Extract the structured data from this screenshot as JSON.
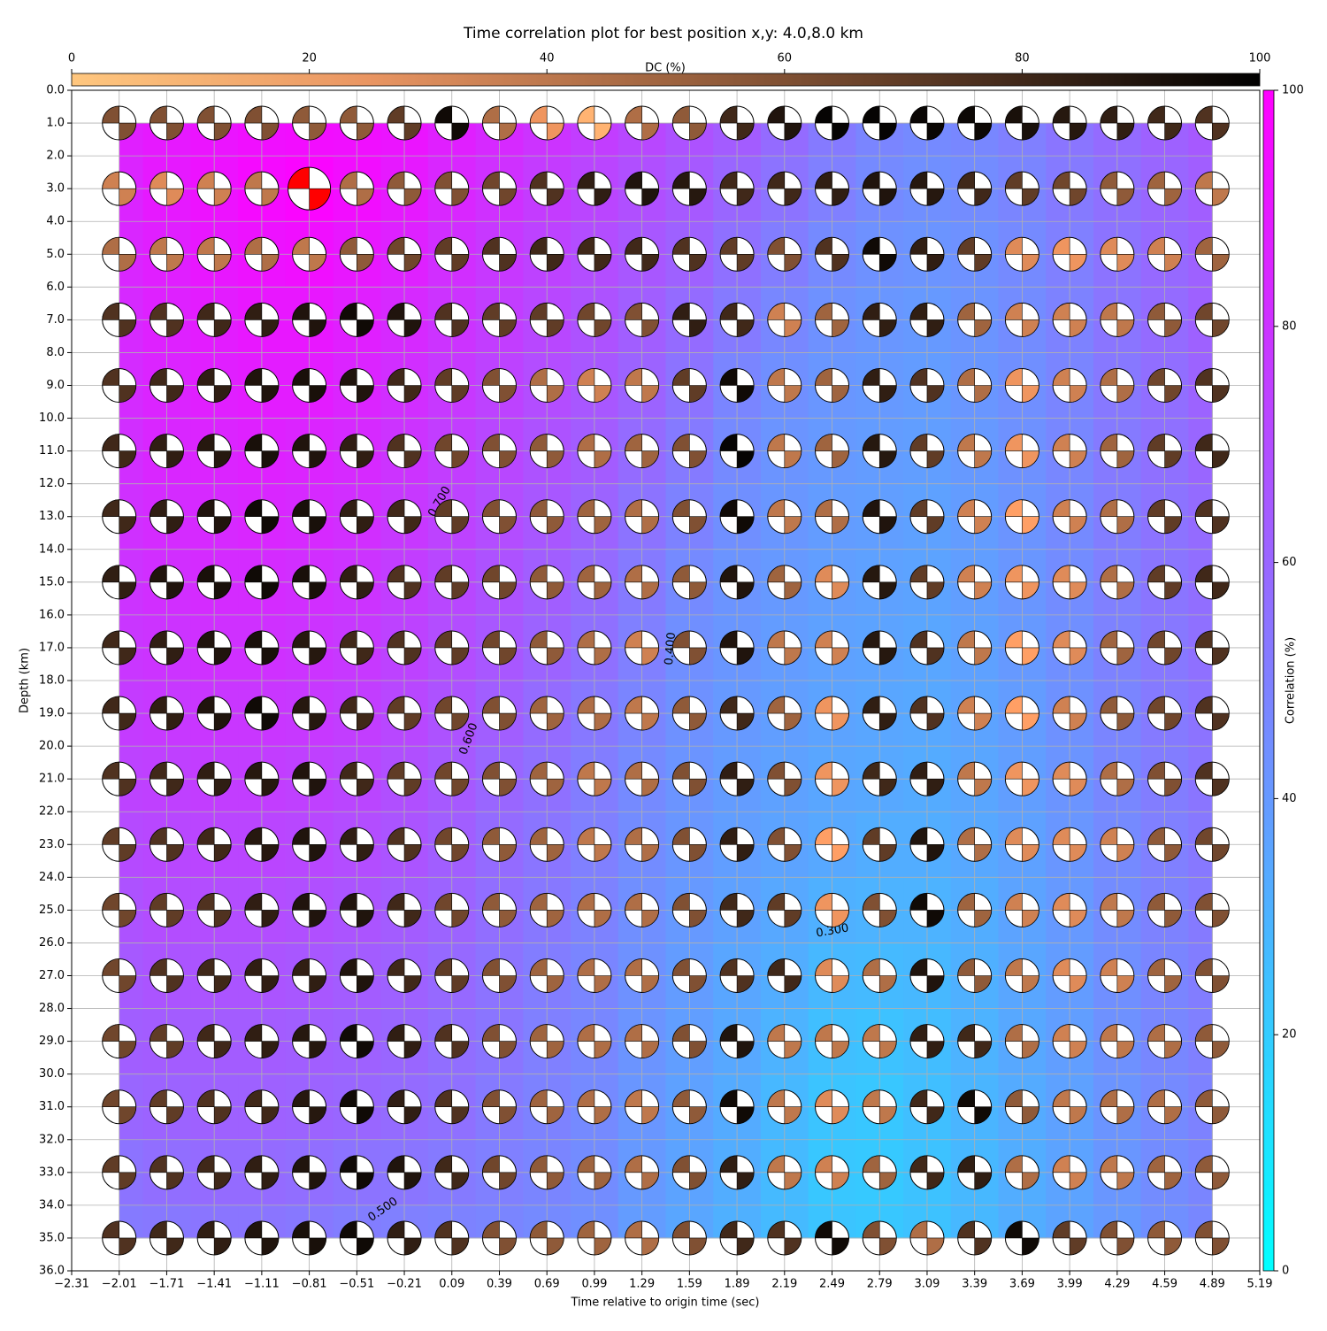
{
  "chart_data": {
    "type": "heatmap",
    "title": "Time correlation plot for best position x,y: 4.0,8.0 km",
    "x_label": "Time relative to origin time (sec)",
    "y_label": "Depth (km)",
    "cmap": "cool",
    "grid": true,
    "xlim": [
      -2.31,
      5.19
    ],
    "ylim": [
      36,
      0
    ],
    "xticks": [
      {
        "value": -2.31,
        "label": "−2.31"
      },
      {
        "value": -2.01,
        "label": "−2.01"
      },
      {
        "value": -1.71,
        "label": "−1.71"
      },
      {
        "value": -1.41,
        "label": "−1.41"
      },
      {
        "value": -1.11,
        "label": "−1.11"
      },
      {
        "value": -0.81,
        "label": "−0.81"
      },
      {
        "value": -0.51,
        "label": "−0.51"
      },
      {
        "value": -0.21,
        "label": "−0.21"
      },
      0.09,
      0.39,
      0.69,
      0.99,
      1.29,
      1.59,
      1.89,
      2.19,
      2.49,
      2.79,
      3.09,
      3.39,
      3.69,
      3.99,
      4.29,
      4.59,
      4.89,
      5.19
    ],
    "yticks": [
      {
        "value": 0,
        "label": "0.0"
      },
      {
        "value": 1,
        "label": "1.0"
      },
      {
        "value": 2,
        "label": "2.0"
      },
      {
        "value": 3,
        "label": "3.0"
      },
      {
        "value": 4,
        "label": "4.0"
      },
      {
        "value": 5,
        "label": "5.0"
      },
      {
        "value": 6,
        "label": "6.0"
      },
      {
        "value": 7,
        "label": "7.0"
      },
      {
        "value": 8,
        "label": "8.0"
      },
      {
        "value": 9,
        "label": "9.0"
      },
      {
        "value": 10,
        "label": "10.0"
      },
      {
        "value": 11,
        "label": "11.0"
      },
      {
        "value": 12,
        "label": "12.0"
      },
      {
        "value": 13,
        "label": "13.0"
      },
      {
        "value": 14,
        "label": "14.0"
      },
      {
        "value": 15,
        "label": "15.0"
      },
      {
        "value": 16,
        "label": "16.0"
      },
      {
        "value": 17,
        "label": "17.0"
      },
      {
        "value": 18,
        "label": "18.0"
      },
      {
        "value": 19,
        "label": "19.0"
      },
      {
        "value": 20,
        "label": "20.0"
      },
      {
        "value": 21,
        "label": "21.0"
      },
      {
        "value": 22,
        "label": "22.0"
      },
      {
        "value": 23,
        "label": "23.0"
      },
      {
        "value": 24,
        "label": "24.0"
      },
      {
        "value": 25,
        "label": "25.0"
      },
      {
        "value": 26,
        "label": "26.0"
      },
      {
        "value": 27,
        "label": "27.0"
      },
      {
        "value": 28,
        "label": "28.0"
      },
      {
        "value": 29,
        "label": "29.0"
      },
      {
        "value": 30,
        "label": "30.0"
      },
      {
        "value": 31,
        "label": "31.0"
      },
      {
        "value": 32,
        "label": "32.0"
      },
      {
        "value": 33,
        "label": "33.0"
      },
      {
        "value": 34,
        "label": "34.0"
      },
      {
        "value": 35,
        "label": "35.0"
      },
      {
        "value": 36,
        "label": "36.0"
      }
    ],
    "times": [
      -2.01,
      -1.71,
      -1.41,
      -1.11,
      -0.81,
      -0.51,
      -0.21,
      0.09,
      0.39,
      0.69,
      0.99,
      1.29,
      1.59,
      1.89,
      2.19,
      2.49,
      2.79,
      3.09,
      3.39,
      3.69,
      3.99,
      4.29,
      4.59,
      4.89
    ],
    "depths": [
      1,
      3,
      5,
      7,
      9,
      11,
      13,
      15,
      17,
      19,
      21,
      23,
      25,
      27,
      29,
      31,
      33,
      35
    ],
    "values": [
      [
        88,
        90,
        92,
        94,
        95,
        94,
        92,
        88,
        84,
        80,
        76,
        72,
        68,
        64,
        58,
        52,
        48,
        46,
        47,
        50,
        54,
        58,
        62,
        65
      ],
      [
        86,
        90,
        93,
        96,
        98,
        95,
        90,
        85,
        81,
        77,
        73,
        69,
        65,
        60,
        55,
        50,
        46,
        44,
        45,
        48,
        52,
        56,
        60,
        63
      ],
      [
        85,
        88,
        91,
        93,
        94,
        91,
        87,
        82,
        78,
        74,
        70,
        66,
        62,
        56,
        51,
        46,
        43,
        42,
        43,
        46,
        50,
        55,
        59,
        62
      ],
      [
        84,
        87,
        89,
        91,
        91,
        88,
        84,
        80,
        76,
        72,
        68,
        63,
        58,
        52,
        47,
        43,
        41,
        40,
        42,
        45,
        49,
        54,
        58,
        62
      ],
      [
        83,
        86,
        88,
        89,
        89,
        86,
        82,
        78,
        74,
        70,
        66,
        61,
        55,
        48,
        44,
        41,
        40,
        39,
        41,
        44,
        48,
        53,
        57,
        61
      ],
      [
        82,
        85,
        86,
        87,
        86,
        84,
        80,
        76,
        72,
        68,
        64,
        58,
        52,
        46,
        42,
        40,
        39,
        38,
        40,
        43,
        47,
        52,
        56,
        60
      ],
      [
        81,
        83,
        84,
        85,
        84,
        82,
        78,
        74,
        70,
        66,
        61,
        55,
        49,
        44,
        41,
        39,
        38,
        37,
        39,
        42,
        46,
        51,
        55,
        58
      ],
      [
        80,
        82,
        83,
        83,
        82,
        80,
        76,
        72,
        68,
        63,
        58,
        52,
        46,
        42,
        40,
        38,
        37,
        36,
        38,
        41,
        45,
        50,
        54,
        57
      ],
      [
        79,
        80,
        81,
        81,
        80,
        78,
        74,
        70,
        66,
        61,
        56,
        50,
        44,
        41,
        39,
        37,
        36,
        35,
        37,
        40,
        44,
        49,
        53,
        56
      ],
      [
        77,
        78,
        79,
        79,
        78,
        76,
        72,
        68,
        63,
        58,
        53,
        48,
        43,
        40,
        38,
        36,
        35,
        34,
        36,
        39,
        43,
        48,
        52,
        55
      ],
      [
        74,
        75,
        76,
        76,
        75,
        73,
        69,
        65,
        60,
        56,
        51,
        46,
        42,
        39,
        37,
        35,
        34,
        33,
        35,
        38,
        42,
        47,
        51,
        54
      ],
      [
        71,
        72,
        73,
        73,
        72,
        70,
        67,
        63,
        58,
        54,
        50,
        45,
        41,
        38,
        36,
        34,
        32,
        32,
        34,
        37,
        41,
        46,
        50,
        53
      ],
      [
        68,
        70,
        70,
        70,
        69,
        67,
        64,
        61,
        57,
        53,
        49,
        44,
        40,
        37,
        34,
        31,
        30,
        30,
        32,
        36,
        40,
        45,
        49,
        52
      ],
      [
        65,
        67,
        67,
        67,
        66,
        64,
        62,
        59,
        55,
        51,
        48,
        43,
        39,
        35,
        32,
        28,
        27,
        28,
        31,
        35,
        39,
        44,
        48,
        51
      ],
      [
        63,
        64,
        64,
        64,
        63,
        62,
        60,
        57,
        54,
        50,
        47,
        42,
        38,
        34,
        30,
        25,
        24,
        26,
        30,
        34,
        38,
        43,
        47,
        50
      ],
      [
        60,
        61,
        62,
        62,
        61,
        60,
        58,
        56,
        52,
        49,
        46,
        41,
        37,
        33,
        28,
        23,
        22,
        25,
        29,
        33,
        37,
        42,
        46,
        49
      ],
      [
        55,
        57,
        58,
        58,
        57,
        55,
        54,
        52,
        50,
        48,
        45,
        40,
        36,
        32,
        27,
        22,
        21,
        24,
        28,
        32,
        36,
        41,
        45,
        48
      ],
      [
        52,
        53,
        54,
        54,
        53,
        51,
        50,
        49,
        48,
        46,
        44,
        39,
        35,
        31,
        27,
        23,
        22,
        24,
        28,
        32,
        36,
        40,
        44,
        47
      ]
    ],
    "dc_cmap": "copper_r",
    "dc": [
      [
        60,
        60,
        60,
        60,
        55,
        55,
        70,
        95,
        45,
        25,
        10,
        45,
        55,
        80,
        90,
        98,
        98,
        97,
        96,
        92,
        88,
        85,
        80,
        75
      ],
      [
        35,
        30,
        35,
        40,
        50,
        45,
        55,
        60,
        65,
        75,
        85,
        90,
        88,
        80,
        80,
        85,
        90,
        88,
        80,
        70,
        65,
        55,
        50,
        40
      ],
      [
        45,
        40,
        40,
        45,
        40,
        55,
        65,
        70,
        75,
        80,
        80,
        80,
        75,
        70,
        60,
        75,
        95,
        85,
        70,
        30,
        25,
        30,
        35,
        50
      ],
      [
        75,
        75,
        80,
        85,
        90,
        95,
        90,
        75,
        70,
        70,
        65,
        60,
        85,
        80,
        35,
        50,
        85,
        85,
        50,
        35,
        35,
        40,
        55,
        65
      ],
      [
        75,
        80,
        85,
        90,
        92,
        90,
        80,
        70,
        60,
        45,
        35,
        40,
        70,
        95,
        40,
        50,
        85,
        75,
        45,
        25,
        35,
        45,
        65,
        75
      ],
      [
        80,
        85,
        88,
        92,
        90,
        85,
        75,
        65,
        60,
        55,
        45,
        50,
        60,
        98,
        40,
        50,
        88,
        70,
        40,
        25,
        35,
        50,
        70,
        80
      ],
      [
        80,
        85,
        90,
        95,
        92,
        85,
        80,
        70,
        60,
        55,
        50,
        45,
        60,
        95,
        40,
        45,
        90,
        70,
        35,
        20,
        35,
        45,
        70,
        75
      ],
      [
        85,
        90,
        92,
        95,
        92,
        85,
        75,
        70,
        65,
        55,
        50,
        45,
        55,
        90,
        50,
        30,
        88,
        70,
        35,
        25,
        30,
        45,
        70,
        80
      ],
      [
        80,
        85,
        90,
        92,
        88,
        80,
        75,
        70,
        65,
        55,
        45,
        35,
        60,
        90,
        40,
        35,
        88,
        75,
        40,
        20,
        30,
        50,
        65,
        75
      ],
      [
        80,
        85,
        90,
        95,
        88,
        80,
        70,
        65,
        60,
        50,
        45,
        40,
        55,
        80,
        50,
        25,
        85,
        75,
        35,
        20,
        35,
        55,
        65,
        75
      ],
      [
        75,
        80,
        85,
        88,
        90,
        80,
        70,
        65,
        60,
        50,
        40,
        45,
        60,
        85,
        60,
        25,
        80,
        85,
        40,
        25,
        30,
        45,
        60,
        75
      ],
      [
        70,
        75,
        80,
        88,
        90,
        85,
        75,
        65,
        55,
        50,
        40,
        45,
        60,
        85,
        60,
        20,
        70,
        90,
        45,
        30,
        30,
        35,
        55,
        65
      ],
      [
        65,
        70,
        75,
        85,
        90,
        90,
        80,
        65,
        55,
        50,
        45,
        45,
        60,
        80,
        70,
        25,
        60,
        95,
        50,
        35,
        30,
        40,
        55,
        60
      ],
      [
        65,
        75,
        80,
        85,
        85,
        90,
        80,
        70,
        60,
        50,
        45,
        45,
        60,
        75,
        80,
        30,
        45,
        90,
        55,
        40,
        30,
        35,
        50,
        60
      ],
      [
        65,
        70,
        80,
        85,
        88,
        95,
        85,
        75,
        60,
        50,
        45,
        45,
        60,
        90,
        40,
        40,
        40,
        85,
        80,
        45,
        35,
        40,
        45,
        55
      ],
      [
        65,
        70,
        75,
        80,
        88,
        95,
        85,
        75,
        60,
        50,
        45,
        40,
        55,
        95,
        40,
        30,
        40,
        80,
        95,
        55,
        40,
        45,
        45,
        55
      ],
      [
        70,
        75,
        80,
        85,
        90,
        95,
        90,
        80,
        65,
        55,
        50,
        45,
        60,
        85,
        40,
        35,
        50,
        80,
        85,
        45,
        35,
        40,
        50,
        55
      ],
      [
        75,
        80,
        85,
        90,
        92,
        95,
        85,
        75,
        60,
        55,
        50,
        45,
        60,
        80,
        75,
        95,
        60,
        45,
        75,
        95,
        70,
        60,
        55,
        60
      ]
    ],
    "best": [
      1,
      4
    ],
    "best_color": "#ff0000",
    "contour_labels": [
      "0.700",
      "0.600",
      "0.500",
      "0.400",
      "0.300"
    ],
    "colorbar": {
      "label": "Correlation (%)",
      "lim": [
        0,
        100
      ],
      "ticks": [
        0,
        20,
        40,
        60,
        80,
        100
      ]
    },
    "dc_colorbar": {
      "label": "DC (%)",
      "lim": [
        0,
        100
      ],
      "ticks": [
        0,
        20,
        40,
        60,
        80,
        100
      ]
    }
  }
}
